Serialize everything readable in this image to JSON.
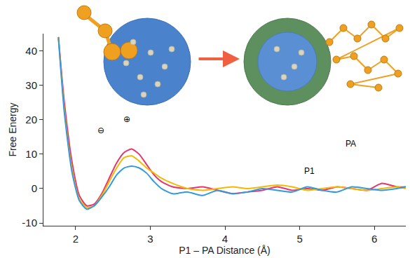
{
  "chart_data": {
    "type": "line",
    "xlabel": "P1 – PA Distance (Å)",
    "ylabel": "Free Energy",
    "x": [
      1.77,
      1.85,
      1.95,
      2.05,
      2.15,
      2.25,
      2.35,
      2.45,
      2.55,
      2.65,
      2.75,
      2.85,
      2.95,
      3.05,
      3.15,
      3.3,
      3.5,
      3.7,
      3.9,
      4.1,
      4.3,
      4.5,
      4.7,
      4.9,
      5.1,
      5.3,
      5.5,
      5.7,
      5.9,
      6.1,
      6.3,
      6.42
    ],
    "series": [
      {
        "color": "#e8336b",
        "values": [
          44,
          25,
          8,
          -2,
          -5,
          -4.5,
          -1.5,
          3,
          7.5,
          10.5,
          11.5,
          10,
          7,
          4,
          2,
          0.5,
          0,
          0.5,
          -0.5,
          -1.5,
          -1,
          -0.5,
          0.5,
          -0.5,
          0,
          -0.5,
          0.5,
          0,
          -0.5,
          1.5,
          0.5,
          0.5
        ]
      },
      {
        "color": "#f5b800",
        "values": [
          44,
          23,
          6,
          -3,
          -5.5,
          -5,
          -2,
          2,
          6,
          9,
          9.5,
          8,
          6,
          4.5,
          3,
          1.5,
          0,
          -0.5,
          0,
          0.5,
          0,
          0.5,
          1,
          0.5,
          -0.5,
          0,
          0.5,
          0,
          -0.5,
          0,
          0.5,
          0
        ]
      },
      {
        "color": "#3399dd",
        "values": [
          44,
          22,
          5,
          -3.5,
          -6,
          -5,
          -2.5,
          0.5,
          4,
          6,
          6.5,
          6,
          4.5,
          2,
          0,
          -1.5,
          -1,
          -2,
          -0.5,
          -1.5,
          -1,
          0,
          -0.5,
          -1,
          0.5,
          -0.5,
          -1,
          0.5,
          0,
          -0.5,
          0,
          0.5
        ]
      }
    ],
    "xlim": [
      1.57,
      6.42
    ],
    "xticks": [
      2,
      3,
      4,
      5,
      6
    ],
    "ylim": [
      -10.8,
      45
    ],
    "yticks": [
      -10,
      0,
      10,
      20,
      30,
      40
    ],
    "grid": false,
    "line_style": "solid",
    "annotations": [
      {
        "text": "⊖",
        "x": 2.34,
        "y": 16.9
      },
      {
        "text": "⊕",
        "x": 2.69,
        "y": 20.2
      },
      {
        "text": "P1",
        "x": 5.13,
        "y": 5.1
      },
      {
        "text": "PA",
        "x": 5.68,
        "y": 13
      }
    ]
  }
}
